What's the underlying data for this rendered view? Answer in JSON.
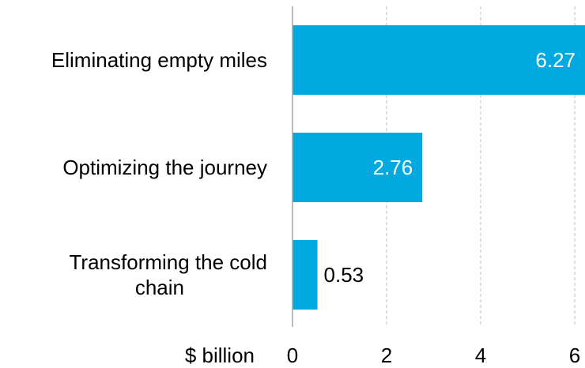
{
  "chart_data": {
    "type": "bar",
    "orientation": "horizontal",
    "categories": [
      "Eliminating empty miles",
      "Optimizing the journey",
      "Transforming the cold chain"
    ],
    "category_lines": [
      [
        "Eliminating empty miles"
      ],
      [
        "Optimizing the journey"
      ],
      [
        "Transforming the cold",
        "chain"
      ]
    ],
    "values": [
      6.27,
      2.76,
      0.53
    ],
    "value_labels": [
      "6.27",
      "2.76",
      "0.53"
    ],
    "x_ticks": [
      0,
      2,
      4,
      6
    ],
    "xlabel": "$ billion",
    "xlim": [
      0,
      6.2
    ],
    "grid": "vertical dashed",
    "bar_color": "#00A9E0",
    "label_inside_color": "#ffffff",
    "label_outside_color": "#000000",
    "text_color": "#000000",
    "grid_color": "#bfbfbf",
    "axis_color": "#a6a6a6"
  }
}
